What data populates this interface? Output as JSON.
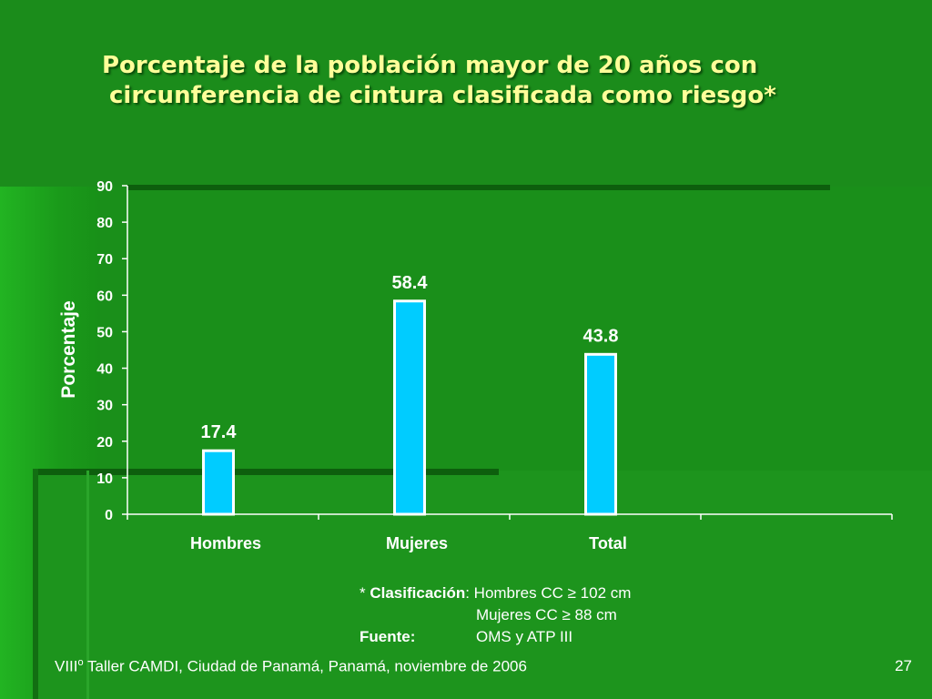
{
  "title": {
    "line1": "Porcentaje de la población mayor de 20 años con",
    "line2": "circunferencia de cintura clasificada como riesgo*"
  },
  "chart_data": {
    "type": "bar",
    "categories": [
      "Hombres",
      "Mujeres",
      "Total"
    ],
    "values": [
      17.4,
      58.4,
      43.8
    ],
    "data_labels": [
      "17.4",
      "58.4",
      "43.8"
    ],
    "ylabel": "Porcentaje",
    "xlabel": "",
    "ylim": [
      0,
      90
    ],
    "yticks": [
      0,
      10,
      20,
      30,
      40,
      50,
      60,
      70,
      80,
      90
    ],
    "grid": false,
    "legend": "none",
    "bar_color": "#00ccff",
    "bar_border": "#ffffff"
  },
  "notes": {
    "classification_label": "Clasificación",
    "asterisk": "* ",
    "men_criterion": ": Hombres CC ≥ 102 cm",
    "women_criterion": "Mujeres CC ≥ 88 cm",
    "source_label": "Fuente:",
    "source_value": "OMS y ATP III"
  },
  "footer": {
    "prefix": "VIII",
    "ordinal": "o",
    "text": " Taller CAMDI, Ciudad de Panamá, Panamá, noviembre de 2006",
    "page_number": "27"
  },
  "colors": {
    "background": "#1a8f1a",
    "title": "#ffff99",
    "text": "#ffffff"
  }
}
